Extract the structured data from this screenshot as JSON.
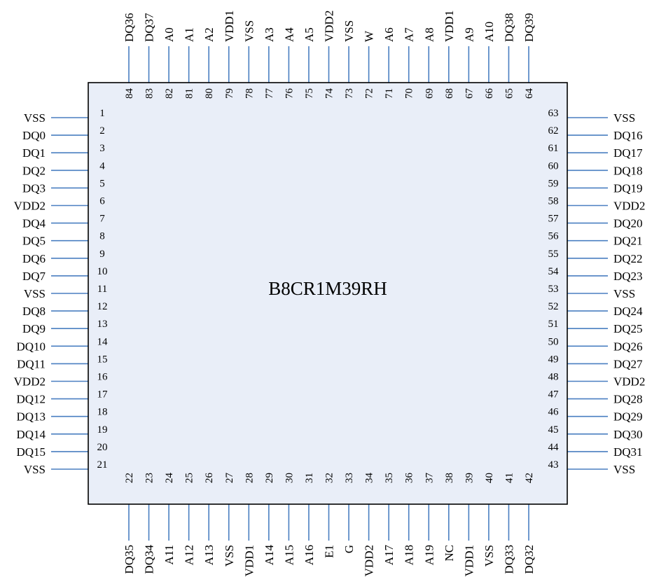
{
  "package": {
    "part_number": "B8CR1M39RH",
    "colors": {
      "body_fill": "#e9eef8",
      "outline": "#000000",
      "pin_line": "#4a7fc1"
    }
  },
  "pins": {
    "left": [
      {
        "num": "1",
        "name": "VSS"
      },
      {
        "num": "2",
        "name": "DQ0"
      },
      {
        "num": "3",
        "name": "DQ1"
      },
      {
        "num": "4",
        "name": "DQ2"
      },
      {
        "num": "5",
        "name": "DQ3"
      },
      {
        "num": "6",
        "name": "VDD2"
      },
      {
        "num": "7",
        "name": "DQ4"
      },
      {
        "num": "8",
        "name": "DQ5"
      },
      {
        "num": "9",
        "name": "DQ6"
      },
      {
        "num": "10",
        "name": "DQ7"
      },
      {
        "num": "11",
        "name": "VSS"
      },
      {
        "num": "12",
        "name": "DQ8"
      },
      {
        "num": "13",
        "name": "DQ9"
      },
      {
        "num": "14",
        "name": "DQ10"
      },
      {
        "num": "15",
        "name": "DQ11"
      },
      {
        "num": "16",
        "name": "VDD2"
      },
      {
        "num": "17",
        "name": "DQ12"
      },
      {
        "num": "18",
        "name": "DQ13"
      },
      {
        "num": "19",
        "name": "DQ14"
      },
      {
        "num": "20",
        "name": "DQ15"
      },
      {
        "num": "21",
        "name": "VSS"
      }
    ],
    "right": [
      {
        "num": "63",
        "name": "VSS"
      },
      {
        "num": "62",
        "name": "DQ16"
      },
      {
        "num": "61",
        "name": "DQ17"
      },
      {
        "num": "60",
        "name": "DQ18"
      },
      {
        "num": "59",
        "name": "DQ19"
      },
      {
        "num": "58",
        "name": "VDD2"
      },
      {
        "num": "57",
        "name": "DQ20"
      },
      {
        "num": "56",
        "name": "DQ21"
      },
      {
        "num": "55",
        "name": "DQ22"
      },
      {
        "num": "54",
        "name": "DQ23"
      },
      {
        "num": "53",
        "name": "VSS"
      },
      {
        "num": "52",
        "name": "DQ24"
      },
      {
        "num": "51",
        "name": "DQ25"
      },
      {
        "num": "50",
        "name": "DQ26"
      },
      {
        "num": "49",
        "name": "DQ27"
      },
      {
        "num": "48",
        "name": "VDD2"
      },
      {
        "num": "47",
        "name": "DQ28"
      },
      {
        "num": "46",
        "name": "DQ29"
      },
      {
        "num": "45",
        "name": "DQ30"
      },
      {
        "num": "44",
        "name": "DQ31"
      },
      {
        "num": "43",
        "name": "VSS"
      }
    ],
    "top": [
      {
        "num": "84",
        "name": "DQ36"
      },
      {
        "num": "83",
        "name": "DQ37"
      },
      {
        "num": "82",
        "name": "A0"
      },
      {
        "num": "81",
        "name": "A1"
      },
      {
        "num": "80",
        "name": "A2"
      },
      {
        "num": "79",
        "name": "VDD1"
      },
      {
        "num": "78",
        "name": "VSS"
      },
      {
        "num": "77",
        "name": "A3"
      },
      {
        "num": "76",
        "name": "A4"
      },
      {
        "num": "75",
        "name": "A5"
      },
      {
        "num": "74",
        "name": "VDD2"
      },
      {
        "num": "73",
        "name": "VSS"
      },
      {
        "num": "72",
        "name": "W"
      },
      {
        "num": "71",
        "name": "A6"
      },
      {
        "num": "70",
        "name": "A7"
      },
      {
        "num": "69",
        "name": "A8"
      },
      {
        "num": "68",
        "name": "VDD1"
      },
      {
        "num": "67",
        "name": "A9"
      },
      {
        "num": "66",
        "name": "A10"
      },
      {
        "num": "65",
        "name": "DQ38"
      },
      {
        "num": "64",
        "name": "DQ39"
      }
    ],
    "bottom": [
      {
        "num": "22",
        "name": "DQ35"
      },
      {
        "num": "23",
        "name": "DQ34"
      },
      {
        "num": "24",
        "name": "A11"
      },
      {
        "num": "25",
        "name": "A12"
      },
      {
        "num": "26",
        "name": "A13"
      },
      {
        "num": "27",
        "name": "VSS"
      },
      {
        "num": "28",
        "name": "VDD1"
      },
      {
        "num": "29",
        "name": "A14"
      },
      {
        "num": "30",
        "name": "A15"
      },
      {
        "num": "31",
        "name": "A16"
      },
      {
        "num": "32",
        "name": "E1"
      },
      {
        "num": "33",
        "name": "G"
      },
      {
        "num": "34",
        "name": "VDD2"
      },
      {
        "num": "35",
        "name": "A17"
      },
      {
        "num": "36",
        "name": "A18"
      },
      {
        "num": "37",
        "name": "A19"
      },
      {
        "num": "38",
        "name": "NC"
      },
      {
        "num": "39",
        "name": "VDD1"
      },
      {
        "num": "40",
        "name": "VSS"
      },
      {
        "num": "41",
        "name": "DQ33"
      },
      {
        "num": "42",
        "name": "DQ32"
      }
    ]
  }
}
